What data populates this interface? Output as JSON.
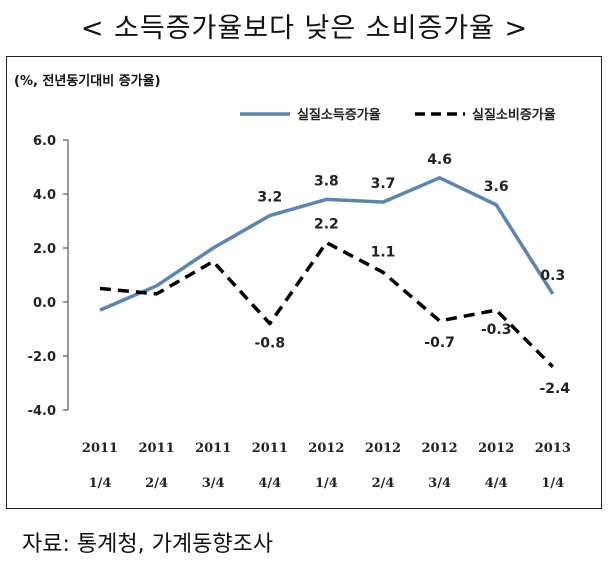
{
  "title": "< 소득증가율보다 낮은 소비증가율 >",
  "unit_label": "(%, 전년동기대비 증가율)",
  "source": "자료: 통계청, 가계동향조사",
  "colors": {
    "income": "#5b84b1",
    "consumption": "#000000"
  },
  "chart_data": {
    "type": "line",
    "categories": [
      [
        "2011",
        "1/4"
      ],
      [
        "2011",
        "2/4"
      ],
      [
        "2011",
        "3/4"
      ],
      [
        "2011",
        "4/4"
      ],
      [
        "2012",
        "1/4"
      ],
      [
        "2012",
        "2/4"
      ],
      [
        "2012",
        "3/4"
      ],
      [
        "2012",
        "4/4"
      ],
      [
        "2013",
        "1/4"
      ]
    ],
    "ylim": [
      -4.0,
      6.0
    ],
    "yticks": [
      "6.0",
      "4.0",
      "2.0",
      "0.0",
      "-2.0",
      "-4.0"
    ],
    "legend_position": "top-right",
    "series": [
      {
        "name": "실질소득증가율",
        "style": "solid",
        "values": [
          -0.3,
          0.6,
          2.0,
          3.2,
          3.8,
          3.7,
          4.6,
          3.6,
          0.3
        ],
        "labels": [
          "",
          "",
          "",
          "3.2",
          "3.8",
          "3.7",
          "4.6",
          "3.6",
          "0.3"
        ]
      },
      {
        "name": "실질소비증가율",
        "style": "dashed",
        "values": [
          0.5,
          0.3,
          1.5,
          -0.8,
          2.2,
          1.1,
          -0.7,
          -0.3,
          -2.4
        ],
        "labels": [
          "",
          "",
          "",
          "-0.8",
          "2.2",
          "1.1",
          "-0.7",
          "-0.3",
          "-2.4"
        ]
      }
    ]
  }
}
